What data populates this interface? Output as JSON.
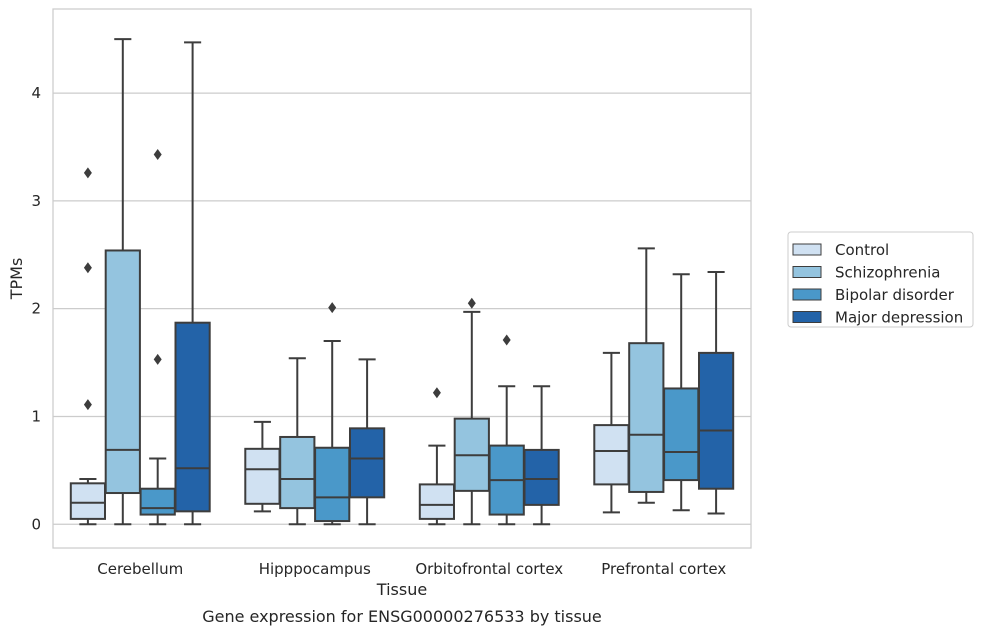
{
  "caption": "Gene expression for ENSG00000276533 by tissue",
  "chart_data": {
    "type": "box",
    "xlabel": "Tissue",
    "ylabel": "TPMs",
    "ylim": [
      -0.22,
      4.78
    ],
    "yticks": [
      0,
      1,
      2,
      3,
      4
    ],
    "grid": "horizontal",
    "legend_position": "right",
    "categories": [
      "Cerebellum",
      "Hipppocampus",
      "Orbitofrontal cortex",
      "Prefrontal cortex"
    ],
    "series": [
      {
        "name": "Control",
        "color": "#d0e1f2",
        "boxes": [
          {
            "min": 0.0,
            "q1": 0.05,
            "median": 0.2,
            "q3": 0.38,
            "max": 0.42,
            "outliers": [
              1.11,
              2.38,
              3.26
            ]
          },
          {
            "min": 0.12,
            "q1": 0.19,
            "median": 0.51,
            "q3": 0.7,
            "max": 0.95,
            "outliers": []
          },
          {
            "min": 0.0,
            "q1": 0.05,
            "median": 0.18,
            "q3": 0.37,
            "max": 0.73,
            "outliers": [
              1.22
            ]
          },
          {
            "min": 0.11,
            "q1": 0.37,
            "median": 0.68,
            "q3": 0.92,
            "max": 1.59,
            "outliers": []
          }
        ]
      },
      {
        "name": "Schizophrenia",
        "color": "#94c4df",
        "boxes": [
          {
            "min": 0.0,
            "q1": 0.29,
            "median": 0.69,
            "q3": 2.54,
            "max": 4.5,
            "outliers": []
          },
          {
            "min": 0.0,
            "q1": 0.15,
            "median": 0.42,
            "q3": 0.81,
            "max": 1.54,
            "outliers": []
          },
          {
            "min": 0.0,
            "q1": 0.31,
            "median": 0.64,
            "q3": 0.98,
            "max": 1.97,
            "outliers": [
              2.05
            ]
          },
          {
            "min": 0.2,
            "q1": 0.3,
            "median": 0.83,
            "q3": 1.68,
            "max": 2.56,
            "outliers": []
          }
        ]
      },
      {
        "name": "Bipolar disorder",
        "color": "#4a98c9",
        "boxes": [
          {
            "min": 0.0,
            "q1": 0.09,
            "median": 0.15,
            "q3": 0.33,
            "max": 0.61,
            "outliers": [
              1.53,
              3.43
            ]
          },
          {
            "min": 0.0,
            "q1": 0.03,
            "median": 0.25,
            "q3": 0.71,
            "max": 1.7,
            "outliers": [
              2.01
            ]
          },
          {
            "min": 0.0,
            "q1": 0.09,
            "median": 0.41,
            "q3": 0.73,
            "max": 1.28,
            "outliers": [
              1.71
            ]
          },
          {
            "min": 0.13,
            "q1": 0.41,
            "median": 0.67,
            "q3": 1.26,
            "max": 2.32,
            "outliers": []
          }
        ]
      },
      {
        "name": "Major depression",
        "color": "#2363a8",
        "boxes": [
          {
            "min": 0.0,
            "q1": 0.12,
            "median": 0.52,
            "q3": 1.87,
            "max": 4.47,
            "outliers": []
          },
          {
            "min": 0.0,
            "q1": 0.25,
            "median": 0.61,
            "q3": 0.89,
            "max": 1.53,
            "outliers": []
          },
          {
            "min": 0.0,
            "q1": 0.18,
            "median": 0.42,
            "q3": 0.69,
            "max": 1.28,
            "outliers": []
          },
          {
            "min": 0.1,
            "q1": 0.33,
            "median": 0.87,
            "q3": 1.59,
            "max": 2.34,
            "outliers": []
          }
        ]
      }
    ]
  }
}
